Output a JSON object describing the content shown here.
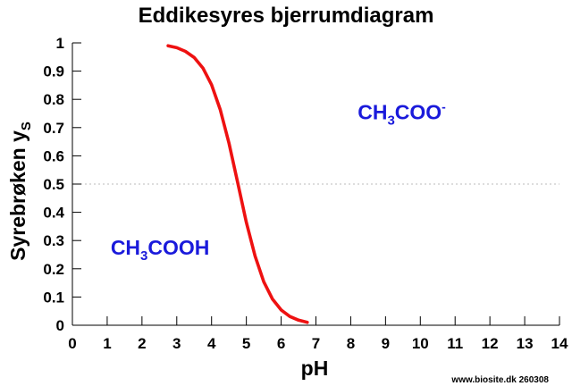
{
  "chart_data": {
    "type": "line",
    "title": "Eddikesyres bjerrumdiagram",
    "xlabel": "pH",
    "ylabel": {
      "main": "Syrebrøken y",
      "sub": "S"
    },
    "xlim": [
      0,
      14
    ],
    "ylim": [
      0,
      1
    ],
    "x_ticks": [
      "0",
      "1",
      "2",
      "3",
      "4",
      "5",
      "6",
      "7",
      "8",
      "9",
      "10",
      "11",
      "12",
      "13",
      "14"
    ],
    "y_ticks": [
      "0",
      "0.1",
      "0.2",
      "0.3",
      "0.4",
      "0.5",
      "0.6",
      "0.7",
      "0.8",
      "0.9",
      "1"
    ],
    "reference_line": {
      "y": 0.5,
      "style": "dotted"
    },
    "series": [
      {
        "color": "#ee1111",
        "pKa": 4.76,
        "x": [
          2.75,
          3.0,
          3.25,
          3.5,
          3.75,
          4.0,
          4.25,
          4.5,
          4.75,
          5.0,
          5.25,
          5.5,
          5.75,
          6.0,
          6.25,
          6.5,
          6.75
        ],
        "y": [
          0.99,
          0.983,
          0.97,
          0.948,
          0.911,
          0.852,
          0.764,
          0.645,
          0.506,
          0.365,
          0.245,
          0.154,
          0.093,
          0.054,
          0.031,
          0.018,
          0.01
        ]
      }
    ],
    "annotations": [
      {
        "name": "acetate",
        "base": "CH",
        "sub": "3",
        "rest": "COO",
        "sup": "-",
        "x": 8.2,
        "y": 0.73
      },
      {
        "name": "acetic-acid",
        "base": "CH",
        "sub": "3",
        "rest": "COOH",
        "sup": "",
        "x": 1.1,
        "y": 0.25
      }
    ],
    "credit": "www.biosite.dk 260308"
  }
}
